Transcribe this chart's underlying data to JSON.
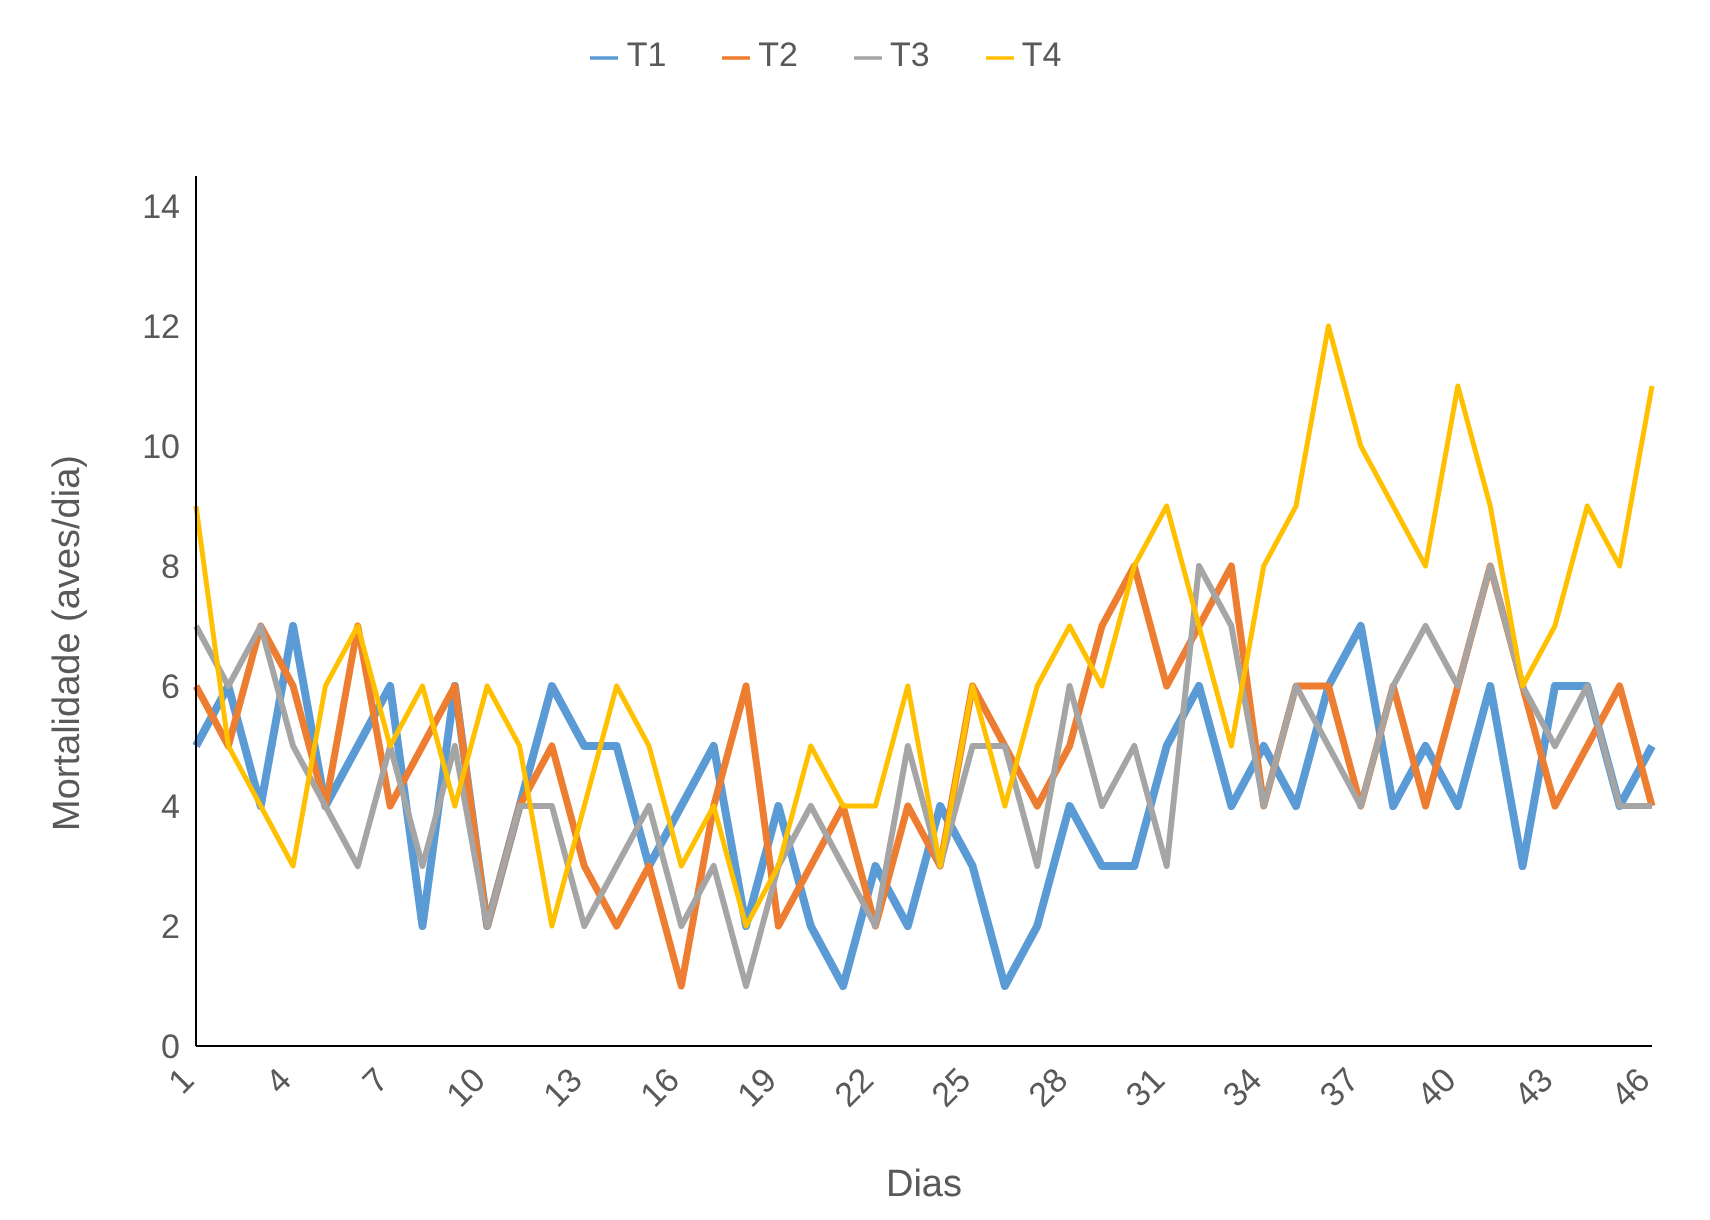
{
  "chart_data": {
    "type": "line",
    "xlabel": "Dias",
    "ylabel": "Mortalidade (aves/dia)",
    "categories": [
      "1",
      null,
      null,
      "4",
      null,
      null,
      "7",
      null,
      null,
      "10",
      null,
      null,
      "13",
      null,
      null,
      "16",
      null,
      null,
      "19",
      null,
      null,
      "22",
      null,
      null,
      "25",
      null,
      null,
      "28",
      null,
      null,
      "31",
      null,
      null,
      "34",
      null,
      null,
      "37",
      null,
      null,
      "40",
      null,
      null,
      "43",
      null,
      null,
      "46"
    ],
    "series": [
      {
        "name": "T1",
        "color": "#5b9bd5",
        "values": [
          5,
          6,
          4,
          7,
          4,
          5,
          6,
          2,
          6,
          2,
          4,
          6,
          5,
          5,
          3,
          4,
          5,
          2,
          4,
          2,
          1,
          3,
          2,
          4,
          3,
          1,
          2,
          4,
          3,
          3,
          5,
          6,
          4,
          5,
          4,
          6,
          7,
          4,
          5,
          4,
          6,
          3,
          6,
          6,
          4,
          5
        ]
      },
      {
        "name": "T2",
        "color": "#ed7d31",
        "values": [
          6,
          5,
          7,
          6,
          4,
          7,
          4,
          5,
          6,
          2,
          4,
          5,
          3,
          2,
          3,
          1,
          4,
          6,
          2,
          3,
          4,
          2,
          4,
          3,
          6,
          5,
          4,
          5,
          7,
          8,
          6,
          7,
          8,
          4,
          6,
          6,
          4,
          6,
          4,
          6,
          8,
          6,
          4,
          5,
          6,
          4
        ]
      },
      {
        "name": "T3",
        "color": "#a5a5a5",
        "values": [
          7,
          6,
          7,
          5,
          4,
          3,
          5,
          3,
          5,
          2,
          4,
          4,
          2,
          3,
          4,
          2,
          3,
          1,
          3,
          4,
          3,
          2,
          5,
          3,
          5,
          5,
          3,
          6,
          4,
          5,
          3,
          8,
          7,
          4,
          6,
          5,
          4,
          6,
          7,
          6,
          8,
          6,
          5,
          6,
          4,
          4
        ]
      },
      {
        "name": "T4",
        "color": "#ffc000",
        "values": [
          9,
          5,
          4,
          3,
          6,
          7,
          5,
          6,
          4,
          6,
          5,
          2,
          4,
          6,
          5,
          3,
          4,
          2,
          3,
          5,
          4,
          4,
          6,
          3,
          6,
          4,
          6,
          7,
          6,
          8,
          9,
          7,
          5,
          8,
          9,
          12,
          10,
          9,
          8,
          11,
          9,
          6,
          7,
          9,
          8,
          11
        ]
      }
    ],
    "ylim": [
      0,
      14.5
    ],
    "yticks": [
      0,
      2,
      4,
      6,
      8,
      10,
      12,
      14
    ],
    "grid": false,
    "legend": "top",
    "marker": "none",
    "line_style": "solid"
  }
}
